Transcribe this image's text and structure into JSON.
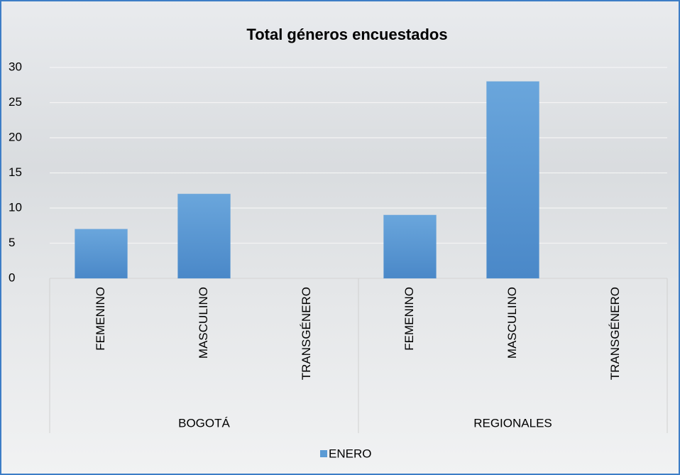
{
  "chart_data": {
    "type": "bar",
    "title": "Total géneros encuestados",
    "groups": [
      {
        "name": "BOGOTÁ",
        "categories": [
          "FEMENINO",
          "MASCULINO",
          "TRANSGÉNERO"
        ]
      },
      {
        "name": "REGIONALES",
        "categories": [
          "FEMENINO",
          "MASCULINO",
          "TRANSGÉNERO"
        ]
      }
    ],
    "series": [
      {
        "name": "ENERO",
        "color": "#5b9bd5",
        "values": [
          7,
          12,
          0,
          9,
          28,
          0
        ]
      }
    ],
    "ylim": [
      0,
      30
    ],
    "yticks": [
      0,
      5,
      10,
      15,
      20,
      25,
      30
    ],
    "grid": true,
    "legend": "bottom"
  }
}
